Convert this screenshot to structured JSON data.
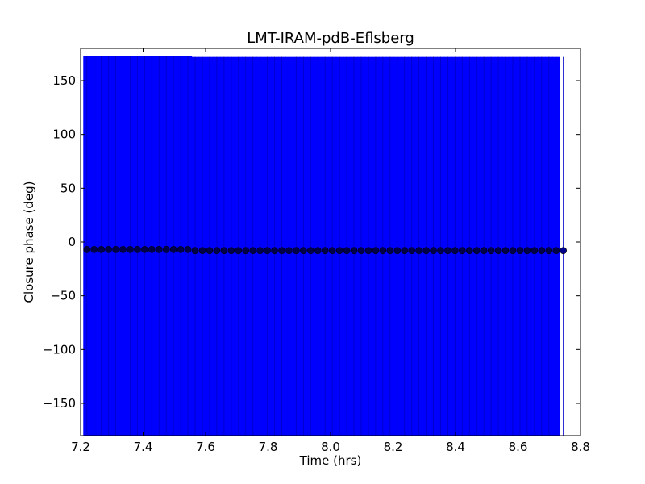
{
  "chart_data": {
    "type": "scatter",
    "title": "LMT-IRAM-pdB-Eflsberg",
    "xlabel": "Time (hrs)",
    "ylabel": "Closure phase (deg)",
    "xlim": [
      7.2,
      8.8
    ],
    "ylim": [
      -180,
      180
    ],
    "x_ticks": [
      7.2,
      7.4,
      7.6,
      7.8,
      8.0,
      8.2,
      8.4,
      8.6,
      8.8
    ],
    "x_tick_labels": [
      "7.2",
      "7.4",
      "7.6",
      "7.8",
      "8.0",
      "8.2",
      "8.4",
      "8.6",
      "8.8"
    ],
    "y_ticks": [
      -150,
      -100,
      -50,
      0,
      50,
      100,
      150
    ],
    "y_tick_labels": [
      "−150",
      "−100",
      "−50",
      "0",
      "50",
      "100",
      "150"
    ],
    "grid": false,
    "series": [
      {
        "marker": "circle",
        "color": "#00004a",
        "errorbar_color": "#0000ff",
        "errorbar_halfwidth_deg": 180,
        "x_start": 7.22,
        "x_end": 8.745,
        "n_points": 67,
        "y": [
          -7,
          -7,
          -7,
          -7,
          -7,
          -7,
          -7,
          -7,
          -7,
          -7,
          -7,
          -7,
          -7,
          -7,
          -7,
          -8,
          -8,
          -8,
          -8,
          -8,
          -8,
          -8,
          -8,
          -8,
          -8,
          -8,
          -8,
          -8,
          -8,
          -8,
          -8,
          -8,
          -8,
          -8,
          -8,
          -8,
          -8,
          -8,
          -8,
          -8,
          -8,
          -8,
          -8,
          -8,
          -8,
          -8,
          -8,
          -8,
          -8,
          -8,
          -8,
          -8,
          -8,
          -8,
          -8,
          -8,
          -8,
          -8,
          -8,
          -8,
          -8,
          -8,
          -8,
          -8,
          -8,
          -8,
          -8
        ]
      }
    ]
  }
}
